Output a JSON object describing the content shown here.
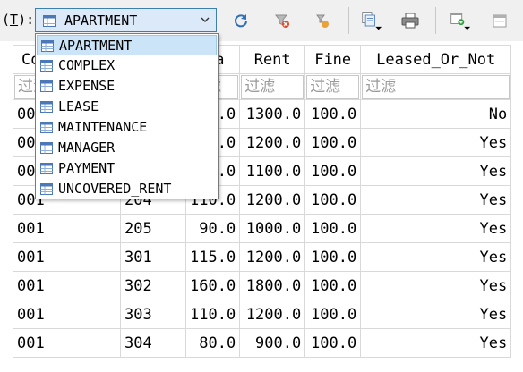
{
  "toolbar": {
    "table_label_prefix": "(",
    "table_label_key": "T",
    "table_label_suffix": "):",
    "table_select": {
      "value": "APARTMENT"
    },
    "buttons": [
      {
        "name": "refresh-button",
        "icon": "refresh-icon"
      },
      {
        "name": "clear-filter-button",
        "icon": "filter-clear-icon"
      },
      {
        "name": "sort-button",
        "icon": "sort-icon"
      },
      {
        "name": "export-button",
        "icon": "export-dropdown-icon"
      },
      {
        "name": "print-button",
        "icon": "printer-icon"
      },
      {
        "name": "new-record-button",
        "icon": "new-record-dropdown-icon"
      },
      {
        "name": "delete-record-button",
        "icon": "delete-record-icon"
      }
    ]
  },
  "dropdown": {
    "options": [
      {
        "label": "APARTMENT",
        "selected": true
      },
      {
        "label": "COMPLEX",
        "selected": false
      },
      {
        "label": "EXPENSE",
        "selected": false
      },
      {
        "label": "LEASE",
        "selected": false
      },
      {
        "label": "MAINTENANCE",
        "selected": false
      },
      {
        "label": "MANAGER",
        "selected": false
      },
      {
        "label": "PAYMENT",
        "selected": false
      },
      {
        "label": "UNCOVERED_RENT",
        "selected": false
      }
    ]
  },
  "grid": {
    "headers": [
      "Co",
      "",
      "ea",
      "Rent",
      "Fine",
      "Leased_Or_Not"
    ],
    "filter_placeholder": "过滤",
    "rows": [
      [
        "00",
        "",
        ".0",
        "1300.0",
        "100.0",
        "No"
      ],
      [
        "00",
        "",
        ".0",
        "1200.0",
        "100.0",
        "Yes"
      ],
      [
        "00",
        "",
        ".0",
        "1100.0",
        "100.0",
        "Yes"
      ],
      [
        "001",
        "204",
        "110.0",
        "1200.0",
        "100.0",
        "Yes"
      ],
      [
        "001",
        "205",
        "90.0",
        "1000.0",
        "100.0",
        "Yes"
      ],
      [
        "001",
        "301",
        "115.0",
        "1200.0",
        "100.0",
        "Yes"
      ],
      [
        "001",
        "302",
        "160.0",
        "1800.0",
        "100.0",
        "Yes"
      ],
      [
        "001",
        "303",
        "110.0",
        "1200.0",
        "100.0",
        "Yes"
      ],
      [
        "001",
        "304",
        "80.0",
        "900.0",
        "100.0",
        "Yes"
      ]
    ]
  },
  "colors": {
    "selection": "#cce4f7",
    "combo_bg": "#dbe9f9",
    "combo_border": "#3c7fb1",
    "table_icon": "#4a78b8"
  }
}
